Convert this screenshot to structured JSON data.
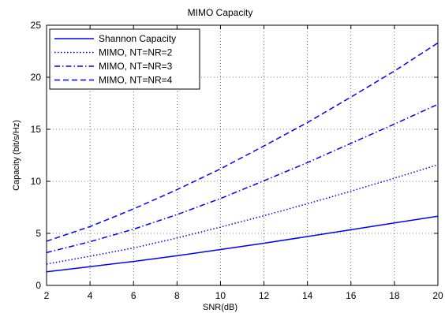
{
  "chart_data": {
    "type": "line",
    "title": "MIMO Capacity",
    "xlabel": "SNR(dB)",
    "ylabel": "Capacity (bit/s/Hz)",
    "xlim": [
      2,
      20
    ],
    "ylim": [
      0,
      25
    ],
    "xticks": [
      "2",
      "4",
      "6",
      "8",
      "10",
      "12",
      "14",
      "16",
      "18",
      "20"
    ],
    "yticks": [
      "0",
      "5",
      "10",
      "15",
      "20",
      "25"
    ],
    "grid": true,
    "legend_position": "top-left",
    "x": [
      2,
      4,
      6,
      8,
      10,
      12,
      14,
      16,
      18,
      20
    ],
    "series": [
      {
        "name": "Shannon Capacity",
        "style": "solid",
        "color": "#0000ff",
        "values": [
          1.3,
          1.8,
          2.3,
          2.85,
          3.45,
          4.05,
          4.7,
          5.35,
          6.0,
          6.65
        ]
      },
      {
        "name": "MIMO, NT=NR=2",
        "style": "dotted",
        "color": "#0000ff",
        "values": [
          2.05,
          2.8,
          3.6,
          4.55,
          5.6,
          6.7,
          7.85,
          9.05,
          10.3,
          11.6
        ]
      },
      {
        "name": "MIMO, NT=NR=3",
        "style": "dashdot",
        "color": "#0000ff",
        "values": [
          3.15,
          4.2,
          5.4,
          6.8,
          8.35,
          10.05,
          11.8,
          13.65,
          15.5,
          17.4
        ]
      },
      {
        "name": "MIMO, NT=NR=4",
        "style": "dashed",
        "color": "#0000ff",
        "values": [
          4.25,
          5.65,
          7.35,
          9.2,
          11.2,
          13.4,
          15.65,
          18.1,
          20.6,
          23.3
        ]
      }
    ]
  }
}
